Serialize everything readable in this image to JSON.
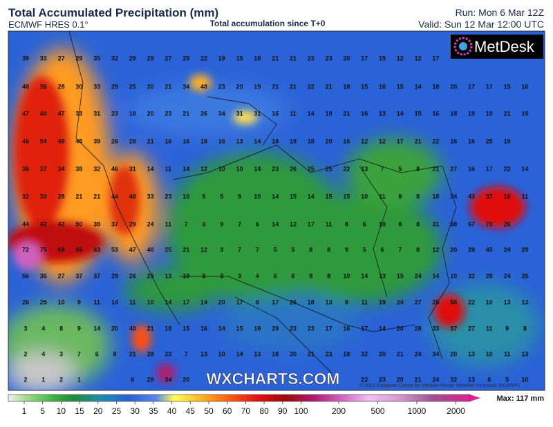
{
  "header": {
    "title": "Total Accumulated Precipitation (mm)",
    "model": "ECMWF HRES 0.1°",
    "subtitle": "Total accumulation since T+0",
    "run": "Run: Mon 6 Mar 12Z",
    "valid": "Valid: Sun 12 Mar 12:00 UTC"
  },
  "logo": "MetDesk",
  "watermark": "WXCHARTS.COM",
  "copyright": "© 2023 European Centre for Medium-Range Weather Forecasts (ECMWF)",
  "max_label": "Max: 117 mm",
  "grid_values": [
    [
      39,
      33,
      27,
      29,
      35,
      32,
      29,
      29,
      27,
      25,
      22,
      19,
      15,
      18,
      21,
      21,
      23,
      23,
      20,
      17,
      15,
      12,
      12,
      17,
      null,
      null,
      null,
      null,
      null
    ],
    [
      48,
      36,
      28,
      30,
      33,
      29,
      25,
      20,
      21,
      34,
      48,
      23,
      20,
      19,
      21,
      21,
      22,
      21,
      18,
      15,
      16,
      15,
      14,
      18,
      20,
      17,
      17,
      15,
      16
    ],
    [
      47,
      40,
      47,
      33,
      31,
      23,
      18,
      20,
      23,
      21,
      26,
      34,
      31,
      31,
      16,
      11,
      14,
      19,
      21,
      16,
      13,
      14,
      15,
      16,
      18,
      19,
      19,
      21,
      19
    ],
    [
      46,
      54,
      48,
      45,
      39,
      26,
      28,
      21,
      16,
      16,
      18,
      16,
      13,
      14,
      18,
      19,
      18,
      20,
      16,
      12,
      12,
      17,
      21,
      22,
      16,
      16,
      25,
      19,
      null
    ],
    [
      36,
      37,
      34,
      38,
      32,
      46,
      31,
      14,
      11,
      14,
      12,
      10,
      10,
      14,
      23,
      26,
      25,
      25,
      22,
      13,
      7,
      5,
      8,
      21,
      27,
      16,
      17,
      22,
      14
    ],
    [
      32,
      30,
      28,
      21,
      21,
      44,
      48,
      33,
      23,
      10,
      5,
      5,
      9,
      10,
      14,
      15,
      14,
      15,
      15,
      10,
      11,
      8,
      8,
      18,
      34,
      43,
      37,
      16,
      11
    ],
    [
      44,
      42,
      42,
      50,
      38,
      37,
      29,
      24,
      11,
      7,
      6,
      9,
      7,
      6,
      14,
      12,
      17,
      11,
      8,
      6,
      10,
      8,
      8,
      31,
      38,
      67,
      73,
      26,
      null
    ],
    [
      72,
      75,
      69,
      56,
      63,
      53,
      47,
      40,
      25,
      21,
      12,
      3,
      7,
      7,
      5,
      5,
      8,
      8,
      9,
      5,
      6,
      7,
      8,
      12,
      20,
      28,
      45,
      24,
      29
    ],
    [
      56,
      36,
      27,
      37,
      37,
      29,
      26,
      25,
      13,
      10,
      5,
      3,
      3,
      4,
      6,
      6,
      8,
      8,
      10,
      14,
      13,
      15,
      24,
      14,
      10,
      32,
      28,
      24,
      35
    ],
    [
      26,
      25,
      10,
      9,
      11,
      14,
      11,
      10,
      14,
      17,
      14,
      20,
      17,
      8,
      17,
      26,
      18,
      13,
      9,
      11,
      19,
      24,
      27,
      28,
      56,
      22,
      10,
      13,
      13
    ],
    [
      3,
      4,
      8,
      9,
      14,
      20,
      40,
      21,
      18,
      15,
      16,
      14,
      15,
      19,
      29,
      23,
      23,
      17,
      16,
      17,
      14,
      20,
      28,
      33,
      37,
      27,
      11,
      9,
      8
    ],
    [
      2,
      4,
      3,
      7,
      6,
      8,
      21,
      28,
      23,
      7,
      13,
      10,
      14,
      13,
      18,
      20,
      21,
      23,
      18,
      32,
      20,
      21,
      24,
      34,
      20,
      13,
      10,
      11,
      13
    ],
    [
      2,
      1,
      2,
      1,
      null,
      null,
      6,
      28,
      34,
      20,
      null,
      null,
      null,
      null,
      null,
      null,
      null,
      null,
      null,
      22,
      23,
      20,
      21,
      24,
      32,
      13,
      6,
      5,
      10
    ]
  ],
  "colorbar_ticks": [
    1,
    5,
    10,
    15,
    20,
    25,
    30,
    35,
    40,
    45,
    50,
    60,
    70,
    80,
    90,
    100,
    200,
    500,
    1000,
    2000
  ]
}
